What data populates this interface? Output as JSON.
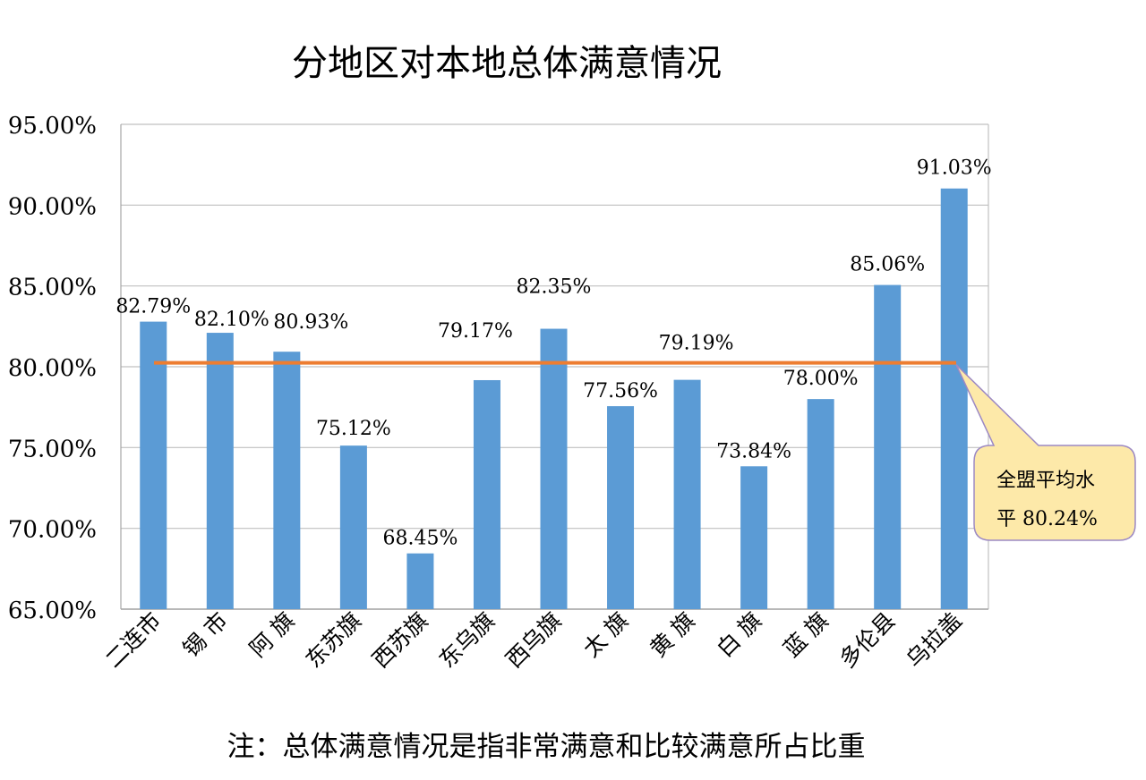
{
  "chart_data": {
    "type": "bar",
    "title": "分地区对本地总体满意情况",
    "categories": [
      "二连市",
      "锡 市",
      "阿 旗",
      "东苏旗",
      "西苏旗",
      "东乌旗",
      "西乌旗",
      "太 旗",
      "黄 旗",
      "白 旗",
      "蓝 旗",
      "多伦县",
      "乌拉盖"
    ],
    "values": [
      82.79,
      82.1,
      80.93,
      75.12,
      68.45,
      79.17,
      82.35,
      77.56,
      79.19,
      73.84,
      78.0,
      85.06,
      91.03
    ],
    "value_labels": [
      "82.79%",
      "82.10%",
      "80.93%",
      "75.12%",
      "68.45%",
      "79.17%",
      "82.35%",
      "77.56%",
      "79.19%",
      "73.84%",
      "78.00%",
      "85.06%",
      "91.03%"
    ],
    "yticks": [
      "65.00%",
      "70.00%",
      "75.00%",
      "80.00%",
      "85.00%",
      "90.00%",
      "95.00%"
    ],
    "ylim": [
      65,
      95
    ],
    "ytick_step": 5,
    "grid": true,
    "average": {
      "value": 80.24,
      "callout_line1": "全盟平均水",
      "callout_line2": "平 80.24%"
    },
    "note": "注：总体满意情况是指非常满意和比较满意所占比重",
    "colors": {
      "bar": "#5b9bd5",
      "average_line": "#ed7d31",
      "callout_fill": "#fde9a9",
      "callout_stroke": "#9c89c4",
      "grid": "#c0c0c0",
      "axis": "#a6a6a6",
      "text": "#000000"
    }
  }
}
